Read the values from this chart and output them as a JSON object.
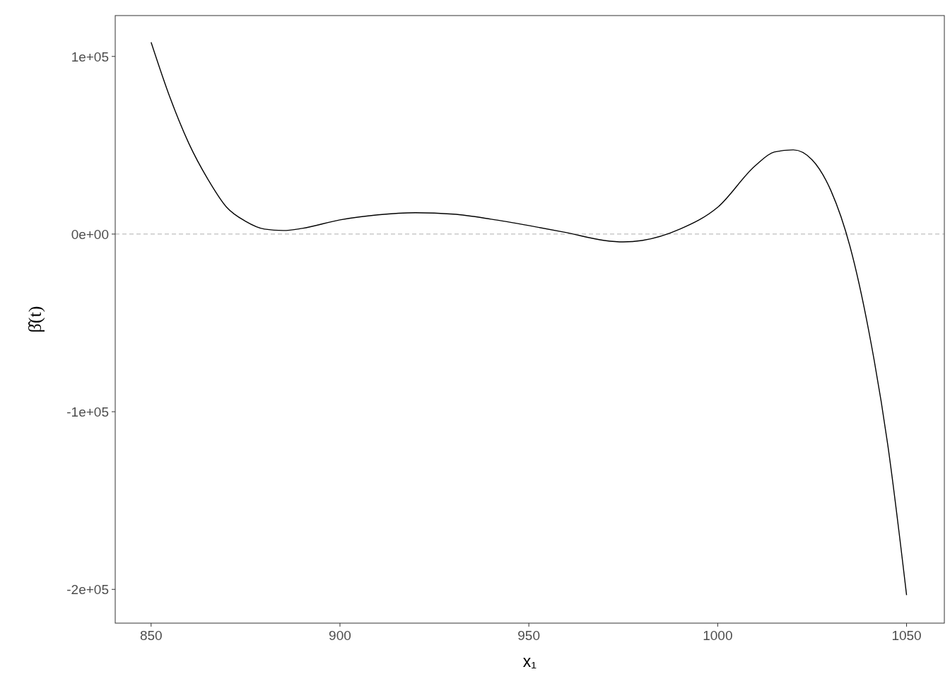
{
  "chart_data": {
    "type": "line",
    "xlabel": "x₁",
    "ylabel": "β̂(t)",
    "xlim": [
      840.5,
      1060
    ],
    "ylim": [
      -219000,
      123000
    ],
    "xticks": [
      850,
      900,
      950,
      1000,
      1050
    ],
    "yticks": [
      {
        "value": -200000,
        "label": "-2e+05"
      },
      {
        "value": -100000,
        "label": "-1e+05"
      },
      {
        "value": 0,
        "label": "0e+00"
      },
      {
        "value": 100000,
        "label": "1e+05"
      }
    ],
    "grid": false,
    "line_style": "solid",
    "marker": "none",
    "ref_lines": [
      {
        "axis": "y",
        "value": 0,
        "color": "#bebebe",
        "line_style": "dashed"
      }
    ],
    "series": [
      {
        "color": "#000000",
        "x": [
          850,
          855,
          860,
          865,
          870,
          875,
          880,
          885,
          890,
          900,
          910,
          920,
          930,
          940,
          950,
          960,
          970,
          975,
          980,
          990,
          1000,
          1010,
          1015,
          1020,
          1025,
          1030,
          1035,
          1040,
          1045,
          1050
        ],
        "values": [
          108000,
          76900,
          51000,
          31000,
          15100,
          7200,
          2800,
          2000,
          3200,
          8000,
          10800,
          12000,
          11200,
          8400,
          4800,
          800,
          -3600,
          -4400,
          -3600,
          2800,
          15100,
          38600,
          46200,
          47400,
          41800,
          24300,
          -6800,
          -54600,
          -118300,
          -203200
        ]
      }
    ]
  }
}
